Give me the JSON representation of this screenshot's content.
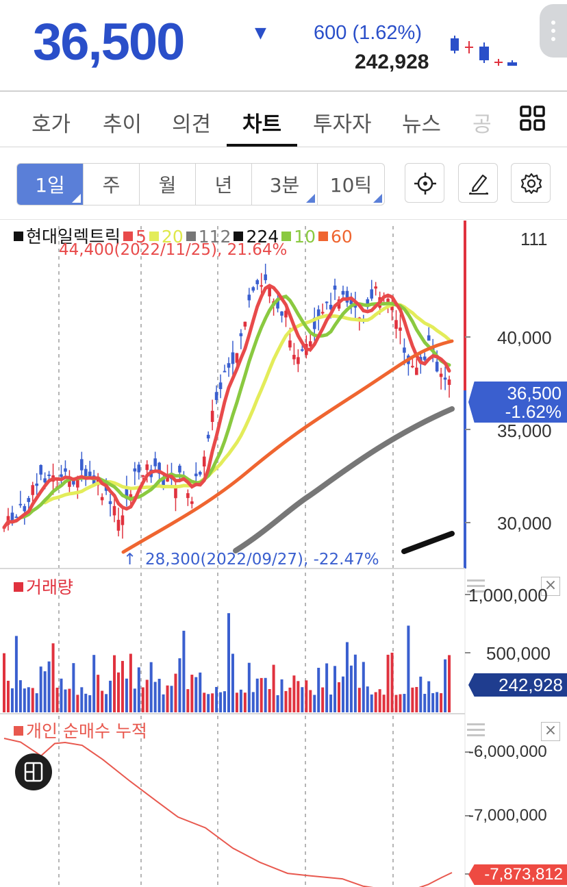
{
  "header": {
    "price": "36,500",
    "change_direction": "down",
    "change_text": "600 (1.62%)",
    "volume": "242,928",
    "accent_color": "#2a4fc9"
  },
  "tabs": [
    {
      "label": "호가"
    },
    {
      "label": "추이"
    },
    {
      "label": "의견"
    },
    {
      "label": "차트",
      "active": true
    },
    {
      "label": "투자자"
    },
    {
      "label": "뉴스"
    },
    {
      "label": "공"
    }
  ],
  "toolbar": {
    "periods": [
      {
        "label": "1일",
        "active": true,
        "has_corner": true
      },
      {
        "label": "주",
        "has_corner": false
      },
      {
        "label": "월",
        "has_corner": false
      },
      {
        "label": "년",
        "has_corner": false
      },
      {
        "label": "3분",
        "has_corner": true
      },
      {
        "label": "10틱",
        "has_corner": true
      }
    ],
    "tools": [
      "crosshair-icon",
      "pencil-icon",
      "settings-icon"
    ]
  },
  "price_chart": {
    "legend_name": "현대일렉트릭",
    "ma": [
      {
        "period": "5",
        "color": "#e84a4a"
      },
      {
        "period": "20",
        "color": "#e3ec5a"
      },
      {
        "period": "112",
        "color": "#777777"
      },
      {
        "period": "224",
        "color": "#111111"
      },
      {
        "period": "10",
        "color": "#8ac940"
      },
      {
        "period": "60",
        "color": "#ef6530"
      }
    ],
    "top_value_label": "111",
    "y_ticks": [
      "40,000",
      "35,000",
      "30,000"
    ],
    "high_annotation": "44,400(2022/11/25), 21.64%",
    "low_annotation": "28,300(2022/09/27), -22.47%",
    "current_tag_price": "36,500",
    "current_tag_change": "-1.62%",
    "up_color": "#e0323e",
    "down_color": "#3a5fcf"
  },
  "volume_panel": {
    "title": "거래량",
    "y_ticks": [
      "1,000,000",
      "500,000"
    ],
    "current_tag": "242,928"
  },
  "investor_panel": {
    "title": "개인 순매수 누적",
    "y_ticks": [
      "-6,000,000",
      "-7,000,000"
    ],
    "current_tag": "-7,873,812"
  }
}
